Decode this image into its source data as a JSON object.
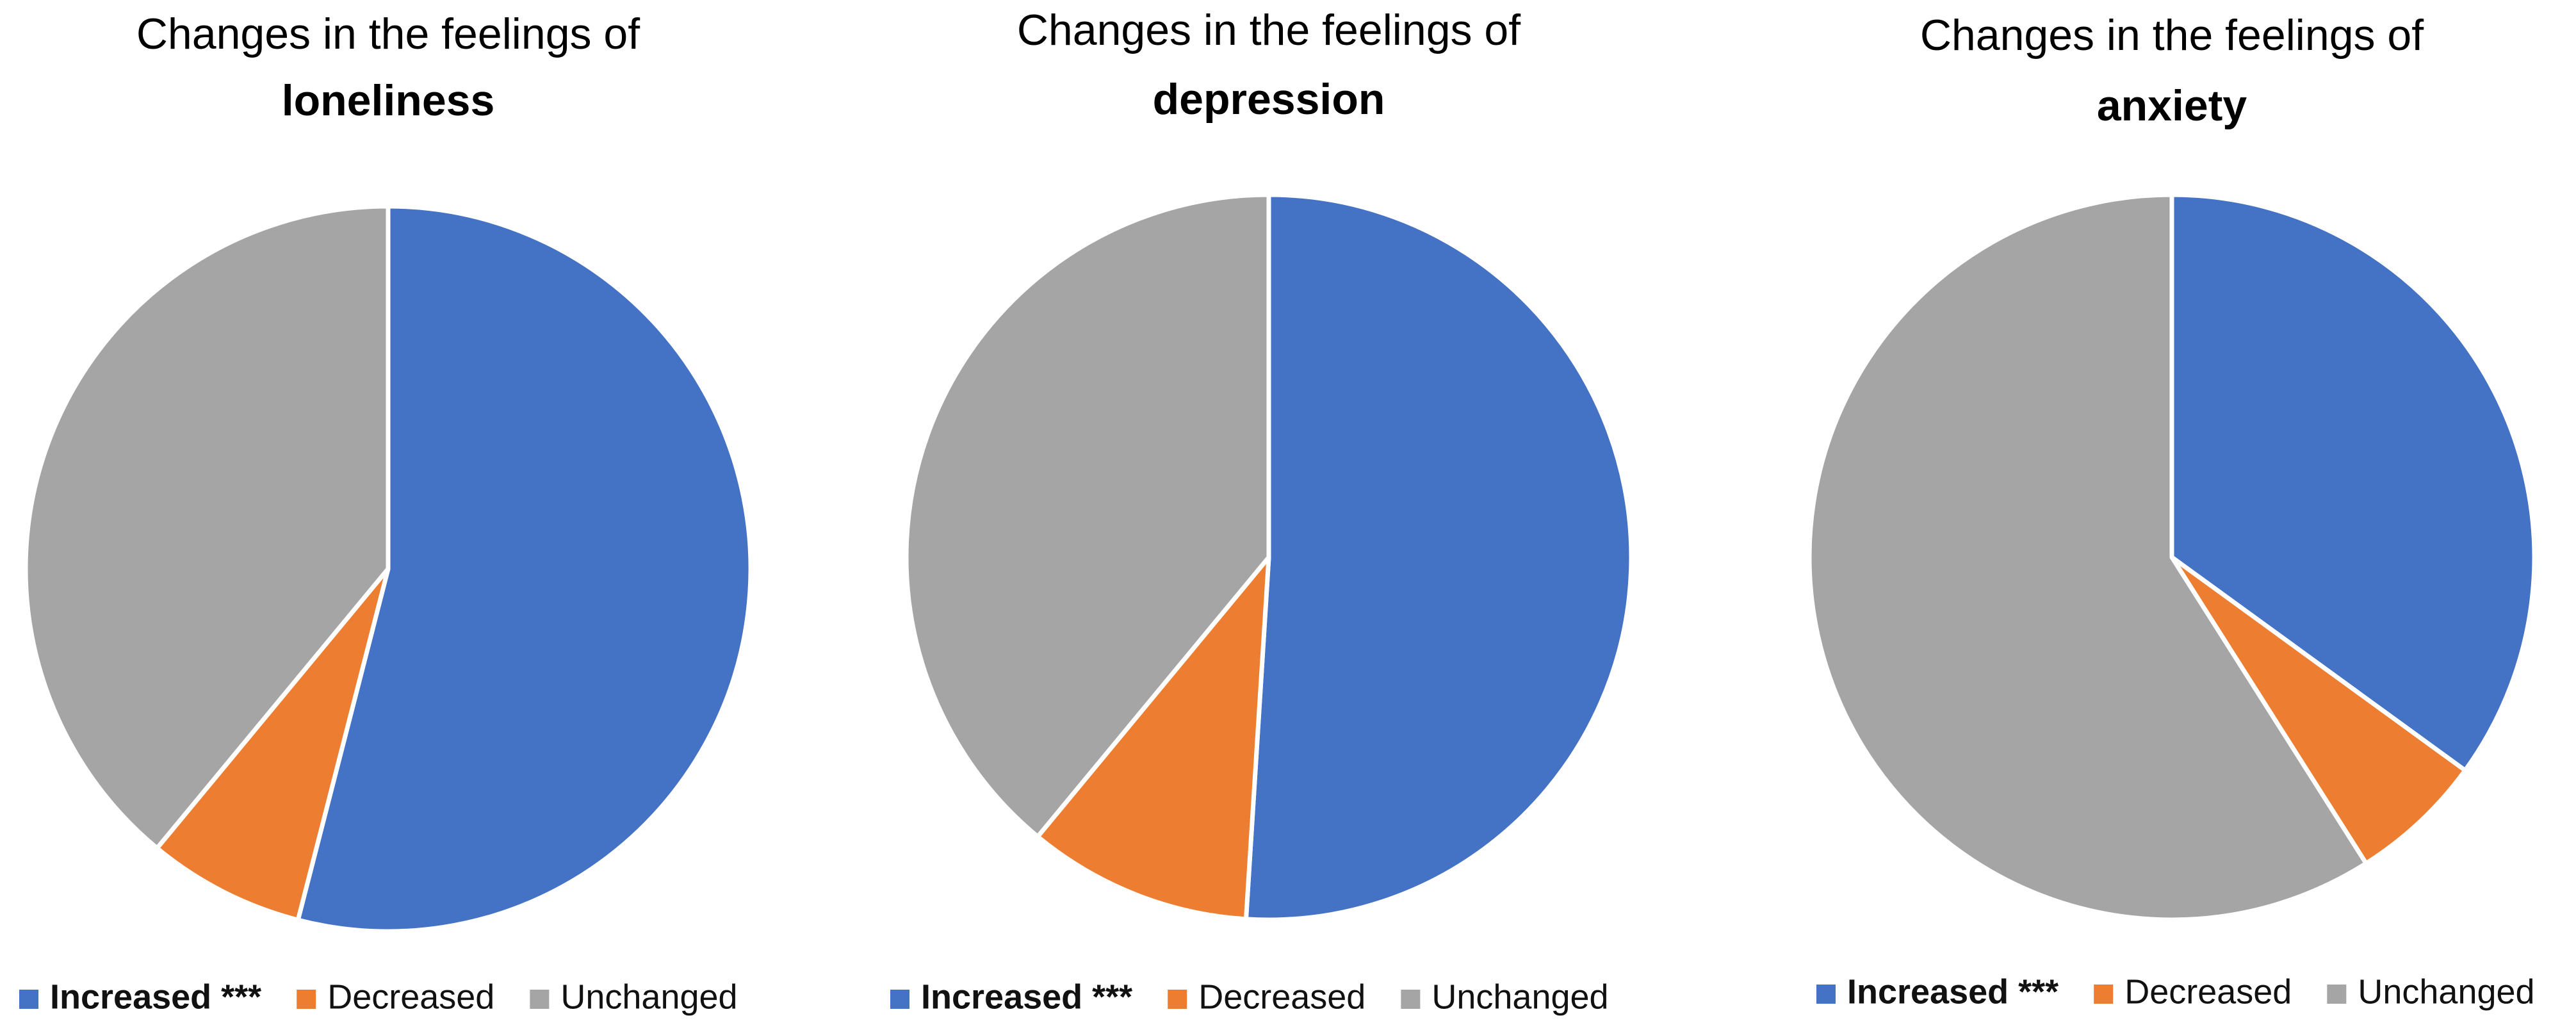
{
  "chart_data": [
    {
      "type": "pie",
      "title": "Changes in the feelings of loneliness",
      "title_line1": "Changes in the feelings of",
      "title_line2": "loneliness",
      "categories": [
        "Increased ***",
        "Decreased",
        "Unchanged"
      ],
      "values": [
        54,
        7,
        39
      ],
      "colors": [
        "#4472C4",
        "#ED7D31",
        "#A5A5A5"
      ],
      "bold_legend_items": [
        "Increased ***"
      ],
      "legend": "bottom"
    },
    {
      "type": "pie",
      "title": "Changes in the feelings of depression",
      "title_line1": "Changes in the feelings of",
      "title_line2": "depression",
      "categories": [
        "Increased ***",
        "Decreased",
        "Unchanged"
      ],
      "values": [
        51,
        10,
        39
      ],
      "colors": [
        "#4472C4",
        "#ED7D31",
        "#A5A5A5"
      ],
      "bold_legend_items": [
        "Increased ***"
      ],
      "legend": "bottom"
    },
    {
      "type": "pie",
      "title": "Changes in the feelings of anxiety",
      "title_line1": "Changes in the feelings of",
      "title_line2": "anxiety",
      "categories": [
        "Increased ***",
        "Decreased",
        "Unchanged"
      ],
      "values": [
        35,
        6,
        59
      ],
      "colors": [
        "#4472C4",
        "#ED7D31",
        "#A5A5A5"
      ],
      "bold_legend_items": [
        "Increased ***"
      ],
      "legend": "bottom"
    }
  ]
}
